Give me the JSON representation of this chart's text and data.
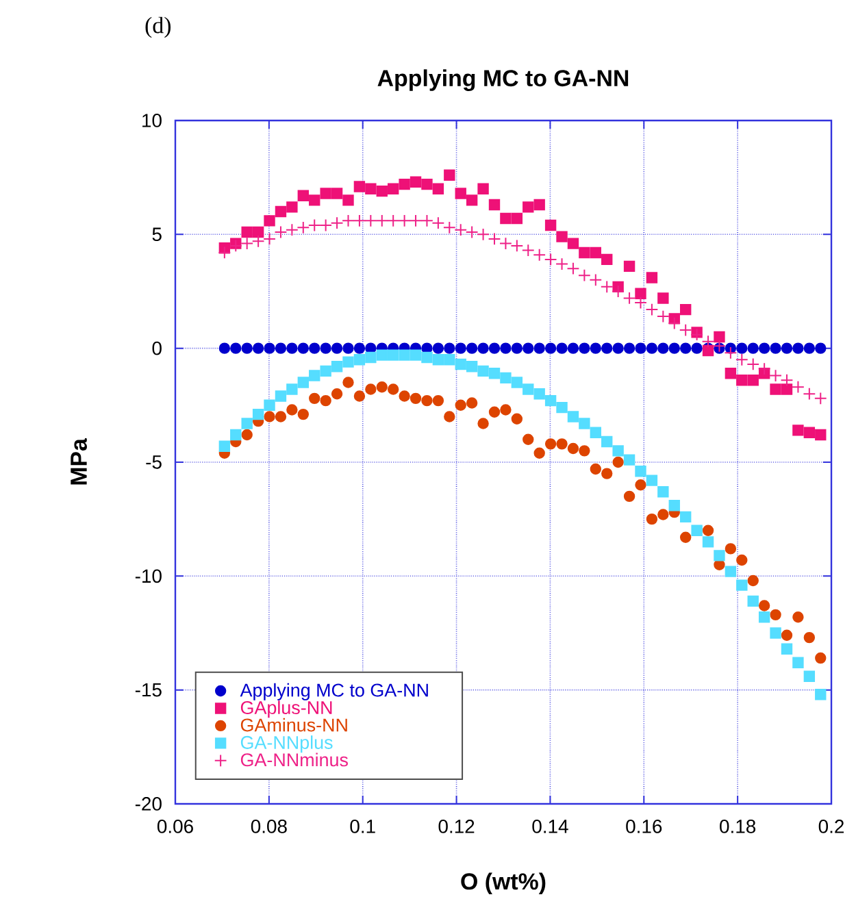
{
  "chart_data": {
    "type": "scatter",
    "title": "Applying MC to GA-NN",
    "xlabel": "O (wt%)",
    "ylabel": "MPa",
    "annotations": [
      "(d)"
    ],
    "x": [
      0.0705,
      0.0729,
      0.0753,
      0.0777,
      0.0801,
      0.0825,
      0.0849,
      0.0873,
      0.0897,
      0.0921,
      0.0945,
      0.0969,
      0.0993,
      0.1017,
      0.1041,
      0.1065,
      0.1089,
      0.1113,
      0.1137,
      0.1161,
      0.1185,
      0.1209,
      0.1233,
      0.1257,
      0.1281,
      0.1305,
      0.1329,
      0.1353,
      0.1377,
      0.1401,
      0.1425,
      0.1449,
      0.1473,
      0.1497,
      0.1521,
      0.1545,
      0.1569,
      0.1593,
      0.1617,
      0.1641,
      0.1665,
      0.1689,
      0.1713,
      0.1737,
      0.1761,
      0.1785,
      0.1809,
      0.1833,
      0.1857,
      0.1881,
      0.1905,
      0.1929,
      0.1953,
      0.1977
    ],
    "series": [
      {
        "name": "Applying MC to GA-NN",
        "color": "#0000cc",
        "marker": "circle",
        "values": [
          0,
          0,
          0,
          0,
          0,
          0,
          0,
          0,
          0,
          0,
          0,
          0,
          0,
          0,
          0,
          0,
          0,
          0,
          0,
          0,
          0,
          0,
          0,
          0,
          0,
          0,
          0,
          0,
          0,
          0,
          0,
          0,
          0,
          0,
          0,
          0,
          0,
          0,
          0,
          0,
          0,
          0,
          0,
          0,
          0,
          0,
          0,
          0,
          0,
          0,
          0,
          0,
          0,
          0
        ]
      },
      {
        "name": "GAplus-NN",
        "color": "#ee1177",
        "marker": "square",
        "values": [
          4.4,
          4.6,
          5.1,
          5.1,
          5.6,
          6.0,
          6.2,
          6.7,
          6.5,
          6.8,
          6.8,
          6.5,
          7.1,
          7.0,
          6.9,
          7.0,
          7.2,
          7.3,
          7.2,
          7.0,
          7.6,
          6.8,
          6.5,
          7.0,
          6.3,
          5.7,
          5.7,
          6.2,
          6.3,
          5.4,
          4.9,
          4.6,
          4.2,
          4.2,
          3.9,
          2.7,
          3.6,
          2.4,
          3.1,
          2.2,
          1.3,
          1.7,
          0.7,
          -0.1,
          0.5,
          -1.1,
          -1.4,
          -1.4,
          -1.1,
          -1.8,
          -1.8,
          -3.6,
          -3.7,
          -3.8
        ]
      },
      {
        "name": "GAminus-NN",
        "color": "#dd4400",
        "marker": "circle",
        "values": [
          -4.6,
          -4.1,
          -3.8,
          -3.2,
          -3.0,
          -3.0,
          -2.7,
          -2.9,
          -2.2,
          -2.3,
          -2.0,
          -1.5,
          -2.1,
          -1.8,
          -1.7,
          -1.8,
          -2.1,
          -2.2,
          -2.3,
          -2.3,
          -3.0,
          -2.5,
          -2.4,
          -3.3,
          -2.8,
          -2.7,
          -3.1,
          -4.0,
          -4.6,
          -4.2,
          -4.2,
          -4.4,
          -4.5,
          -5.3,
          -5.5,
          -5.0,
          -6.5,
          -6.0,
          -7.5,
          -7.3,
          -7.2,
          -8.3,
          null,
          -8.0,
          -9.5,
          -8.8,
          -9.3,
          -10.2,
          -11.3,
          -11.7,
          -12.6,
          -11.8,
          -12.7,
          -13.6
        ]
      },
      {
        "name": "GA-NNplus",
        "color": "#55ddff",
        "marker": "square",
        "values": [
          -4.3,
          -3.8,
          -3.3,
          -2.9,
          -2.5,
          -2.1,
          -1.8,
          -1.5,
          -1.2,
          -1.0,
          -0.8,
          -0.6,
          -0.5,
          -0.4,
          -0.3,
          -0.3,
          -0.3,
          -0.3,
          -0.4,
          -0.5,
          -0.5,
          -0.7,
          -0.8,
          -1.0,
          -1.1,
          -1.3,
          -1.5,
          -1.8,
          -2.0,
          -2.3,
          -2.6,
          -3.0,
          -3.3,
          -3.7,
          -4.1,
          -4.5,
          -4.9,
          -5.4,
          -5.8,
          -6.3,
          -6.9,
          -7.4,
          -8.0,
          -8.5,
          -9.1,
          -9.8,
          -10.4,
          -11.1,
          -11.8,
          -12.5,
          -13.2,
          -13.8,
          -14.4,
          -15.2
        ]
      },
      {
        "name": "GA-NNminus",
        "color": "#ee2288",
        "marker": "cross",
        "values": [
          4.2,
          4.5,
          4.6,
          4.7,
          4.8,
          5.1,
          5.2,
          5.3,
          5.4,
          5.4,
          5.5,
          5.6,
          5.6,
          5.6,
          5.6,
          5.6,
          5.6,
          5.6,
          5.6,
          5.5,
          5.3,
          5.2,
          5.1,
          5.0,
          4.8,
          4.6,
          4.5,
          4.3,
          4.1,
          3.9,
          3.7,
          3.5,
          3.2,
          3.0,
          2.7,
          2.5,
          2.2,
          2.0,
          1.7,
          1.4,
          1.1,
          0.8,
          0.6,
          0.3,
          0.1,
          -0.2,
          -0.5,
          -0.7,
          -0.9,
          -1.2,
          -1.4,
          -1.7,
          -2.0,
          -2.2
        ]
      }
    ],
    "xlim": [
      0.06,
      0.2
    ],
    "ylim": [
      -20,
      10
    ],
    "xticks": [
      0.06,
      0.08,
      0.1,
      0.12,
      0.14,
      0.16,
      0.18,
      0.2
    ],
    "yticks": [
      -20,
      -15,
      -10,
      -5,
      0,
      5,
      10
    ],
    "grid": true,
    "legend": "bottom left"
  }
}
